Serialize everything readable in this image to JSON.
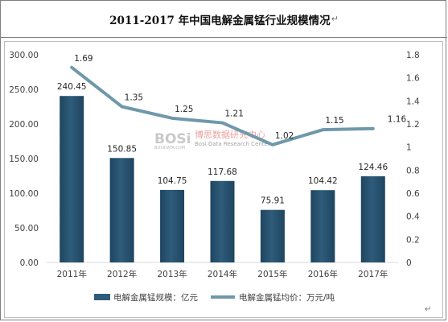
{
  "title": "2011-2017 年中国电解金属锰行业规模情况",
  "title_mark": "↵",
  "corner_mark": "↵",
  "watermark": {
    "logo": "BOSi",
    "logo_small": "BOSIDATA.COM",
    "name_cn": "博思数据研究中心",
    "name_en": "Bosi Data Research Center"
  },
  "colors": {
    "bar": "#2e5c7a",
    "line": "#6f98aa"
  },
  "chart_data": {
    "type": "bar+line",
    "categories": [
      "2011年",
      "2012年",
      "2013年",
      "2014年",
      "2015年",
      "2016年",
      "2017年"
    ],
    "series": [
      {
        "name": "电解金属锰规模：亿元",
        "type": "bar",
        "axis": "left",
        "values": [
          240.45,
          150.85,
          104.75,
          117.68,
          75.91,
          104.42,
          124.46
        ],
        "labels": [
          "240.45",
          "150.85",
          "104.75",
          "117.68",
          "75.91",
          "104.42",
          "124.46"
        ]
      },
      {
        "name": "电解金属锰均价：万元/吨",
        "type": "line",
        "axis": "right",
        "values": [
          1.69,
          1.35,
          1.25,
          1.21,
          1.02,
          1.15,
          1.16
        ],
        "labels": [
          "1.69",
          "1.35",
          "1.25",
          "1.21",
          "1.02",
          "1.15",
          "1.16"
        ]
      }
    ],
    "y_left": {
      "min": 0,
      "max": 300,
      "ticks": [
        "0.00",
        "50.00",
        "100.00",
        "150.00",
        "200.00",
        "250.00",
        "300.00"
      ]
    },
    "y_right": {
      "min": 0,
      "max": 1.8,
      "ticks": [
        "0",
        "0.2",
        "0.4",
        "0.6",
        "0.8",
        "1",
        "1.2",
        "1.4",
        "1.6",
        "1.8"
      ]
    },
    "legend_position": "bottom",
    "grid": false
  }
}
